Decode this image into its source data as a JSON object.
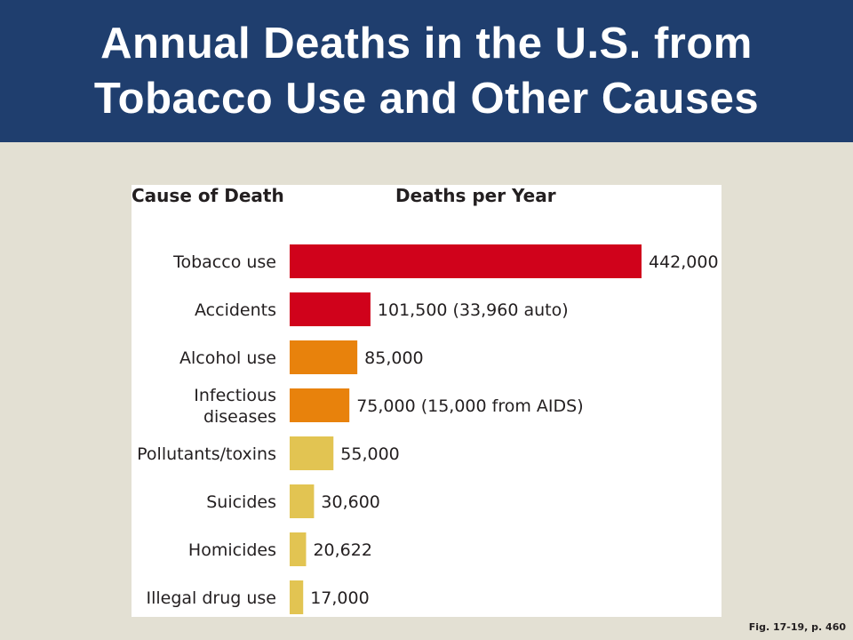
{
  "header": {
    "title_line1": "Annual Deaths in the U.S. from",
    "title_line2": "Tobacco Use and Other Causes"
  },
  "footnote": "Fig. 17-19, p. 460",
  "chart_data": {
    "type": "bar",
    "orientation": "horizontal",
    "column_headers": {
      "category": "Cause of Death",
      "value": "Deaths per Year"
    },
    "categories": [
      [
        "Tobacco use"
      ],
      [
        "Accidents"
      ],
      [
        "Alcohol use"
      ],
      [
        "Infectious",
        "diseases"
      ],
      [
        "Pollutants/toxins"
      ],
      [
        "Suicides"
      ],
      [
        "Homicides"
      ],
      [
        "Illegal drug use"
      ]
    ],
    "values": [
      442000,
      101500,
      85000,
      75000,
      55000,
      30600,
      20622,
      17000
    ],
    "value_labels": [
      "442,000",
      "101,500 (33,960 auto)",
      "85,000",
      "75,000 (15,000 from AIDS)",
      "55,000",
      "30,600",
      "20,622",
      "17,000"
    ],
    "bar_colors": [
      "#d0021b",
      "#d0021b",
      "#e8820c",
      "#e8820c",
      "#e2c452",
      "#e2c452",
      "#e2c452",
      "#e2c452"
    ],
    "xlim": [
      0,
      442000
    ],
    "grid": false
  }
}
